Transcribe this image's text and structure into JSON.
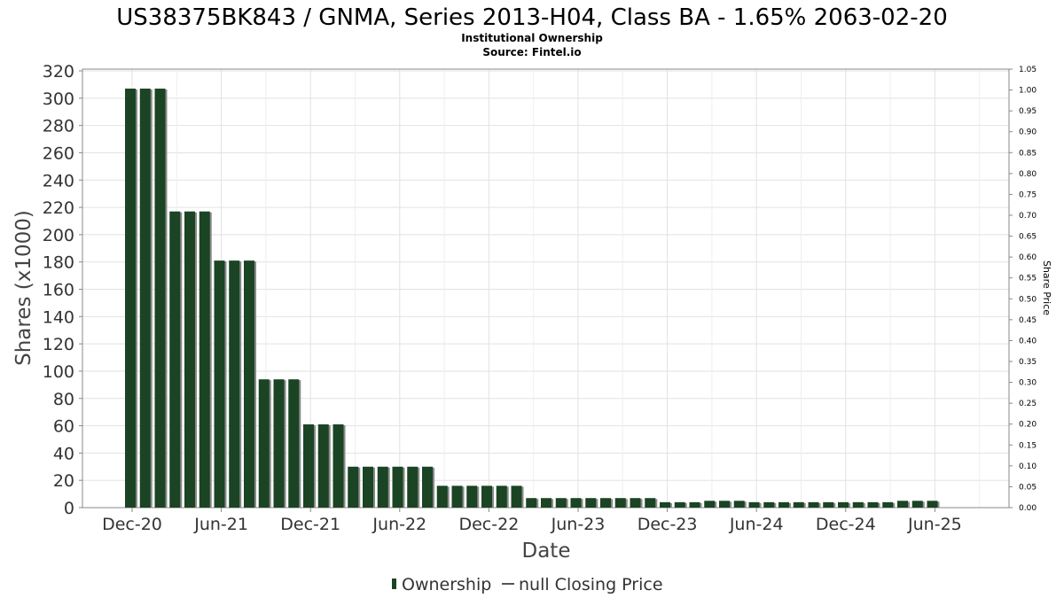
{
  "chart_data": {
    "type": "bar",
    "title": "US38375BK843 / GNMA, Series 2013-H04, Class BA - 1.65% 2063-02-20",
    "subtitle": "Institutional Ownership",
    "source": "Source: Fintel.io",
    "xlabel": "Date",
    "ylabel": "Shares (x1000)",
    "y2label": "Share Price",
    "ylim": [
      0,
      320
    ],
    "y2lim": [
      0,
      1.05
    ],
    "yticks": [
      "0",
      "20",
      "40",
      "60",
      "80",
      "100",
      "120",
      "140",
      "160",
      "180",
      "200",
      "220",
      "240",
      "260",
      "280",
      "300",
      "320"
    ],
    "y2ticks": [
      "0.00",
      "0.05",
      "0.10",
      "0.15",
      "0.20",
      "0.25",
      "0.30",
      "0.35",
      "0.40",
      "0.45",
      "0.50",
      "0.55",
      "0.60",
      "0.65",
      "0.70",
      "0.75",
      "0.80",
      "0.85",
      "0.90",
      "0.95",
      "1.00",
      "1.05"
    ],
    "xticks": [
      "Dec-20",
      "Jun-21",
      "Dec-21",
      "Jun-22",
      "Dec-22",
      "Jun-23",
      "Dec-23",
      "Jun-24",
      "Dec-24",
      "Jun-25"
    ],
    "grid": true,
    "legend_position": "bottom-center",
    "series": [
      {
        "name": "Ownership",
        "color": "#1a4423",
        "values": [
          307,
          307,
          307,
          217,
          217,
          217,
          181,
          181,
          181,
          94,
          94,
          94,
          61,
          61,
          61,
          30,
          30,
          30,
          30,
          30,
          30,
          16,
          16,
          16,
          16,
          16,
          16,
          7,
          7,
          7,
          7,
          7,
          7,
          7,
          7,
          7,
          4,
          4,
          4,
          5,
          5,
          5,
          4,
          4,
          4,
          4,
          4,
          4,
          4,
          4,
          4,
          4,
          5,
          5,
          5
        ]
      },
      {
        "name": "null Closing Price",
        "color": "#555555",
        "values": []
      }
    ]
  }
}
